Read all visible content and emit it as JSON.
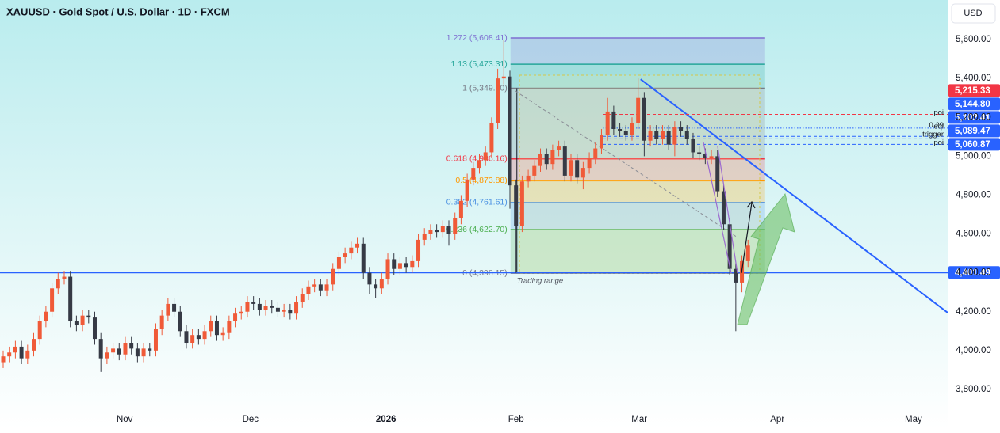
{
  "chart_data": {
    "type": "candlestick",
    "title": "XAUUSD · Gold Spot / U.S. Dollar · 1D · FXCM",
    "currency": "USD",
    "xlim": [
      -0.52,
      154.7
    ],
    "xticks": [
      {
        "value": 19.9,
        "label": "Nov"
      },
      {
        "value": 40.5,
        "label": "Dec"
      },
      {
        "value": 62.7,
        "label": "2026"
      },
      {
        "value": 84,
        "label": "Feb"
      },
      {
        "value": 104.2,
        "label": "Mar"
      },
      {
        "value": 126.8,
        "label": "Apr"
      },
      {
        "value": 149.1,
        "label": "May"
      }
    ],
    "ylim": [
      3706,
      5804
    ],
    "yticks": [
      {
        "value": 5600,
        "label": "5,600.00"
      },
      {
        "value": 5400,
        "label": "5,400.00"
      },
      {
        "value": 5200,
        "label": "5,200.00"
      },
      {
        "value": 5000,
        "label": "5,000.00"
      },
      {
        "value": 4800,
        "label": "4,800.00"
      },
      {
        "value": 4600,
        "label": "4,600.00"
      },
      {
        "value": 4400,
        "label": "4,400.00"
      },
      {
        "value": 4200,
        "label": "4,200.00"
      },
      {
        "value": 4000,
        "label": "4,000.00"
      },
      {
        "value": 3800,
        "label": "3,800.00"
      }
    ],
    "grid": false,
    "up_color": "#f05a38",
    "down_color": "#363a45",
    "open": [
      3940,
      3970,
      3990,
      4020,
      3960,
      4000,
      4060,
      4150,
      4200,
      4320,
      4370,
      4380,
      4150,
      4130,
      4180,
      4170,
      4060,
      3960,
      3990,
      4010,
      3980,
      4040,
      4010,
      3970,
      4010,
      4000,
      4110,
      4180,
      4240,
      4200,
      4100,
      4040,
      4080,
      4060,
      4100,
      4150,
      4080,
      4090,
      4150,
      4190,
      4200,
      4250,
      4240,
      4210,
      4230,
      4220,
      4200,
      4210,
      4190,
      4250,
      4290,
      4330,
      4340,
      4310,
      4340,
      4420,
      4480,
      4500,
      4530,
      4550,
      4400,
      4340,
      4320,
      4370,
      4470,
      4420,
      4450,
      4430,
      4460,
      4570,
      4600,
      4620,
      4610,
      4640,
      4600,
      4680,
      4770,
      4880,
      4940,
      4980,
      5020,
      5170,
      5400,
      5410,
      4850,
      4640,
      4870,
      4900,
      4950,
      5010,
      4960,
      5030,
      5050,
      4900,
      4980,
      4890,
      4940,
      4990,
      5040,
      5110,
      5230,
      5140,
      5130,
      5110,
      5170,
      5300,
      5080,
      5130,
      5090,
      5130,
      5060,
      5150,
      5130,
      5090,
      5020,
      5010,
      4990,
      5000,
      4820,
      4650,
      4420,
      4350,
      4460
    ],
    "high": [
      4000,
      4020,
      4050,
      4050,
      4030,
      4090,
      4180,
      4230,
      4350,
      4400,
      4410,
      4410,
      4180,
      4210,
      4210,
      4200,
      4090,
      4020,
      4040,
      4040,
      4070,
      4070,
      4040,
      4040,
      4040,
      4140,
      4210,
      4270,
      4270,
      4230,
      4130,
      4110,
      4110,
      4130,
      4180,
      4180,
      4120,
      4180,
      4220,
      4230,
      4280,
      4280,
      4270,
      4260,
      4260,
      4250,
      4240,
      4240,
      4280,
      4320,
      4360,
      4370,
      4370,
      4370,
      4450,
      4510,
      4530,
      4560,
      4580,
      4580,
      4430,
      4370,
      4400,
      4500,
      4500,
      4480,
      4480,
      4490,
      4600,
      4630,
      4650,
      4650,
      4670,
      4670,
      4710,
      4800,
      4910,
      4970,
      5010,
      5050,
      5200,
      5450,
      5600,
      5440,
      4880,
      4900,
      4930,
      4980,
      5040,
      5040,
      5060,
      5080,
      5080,
      5010,
      5010,
      4970,
      5020,
      5070,
      5140,
      5300,
      5260,
      5170,
      5160,
      5200,
      5400,
      5330,
      5160,
      5160,
      5160,
      5160,
      5180,
      5180,
      5160,
      5120,
      5050,
      5040,
      5030,
      5030,
      4850,
      4680,
      4450,
      4490,
      4570
    ],
    "low": [
      3910,
      3940,
      3960,
      3930,
      3930,
      3970,
      4030,
      4120,
      4170,
      4290,
      4340,
      4120,
      4100,
      4100,
      4140,
      4030,
      3890,
      3930,
      3960,
      3950,
      3950,
      3980,
      3940,
      3940,
      3970,
      3970,
      4080,
      4150,
      4170,
      4070,
      4010,
      4010,
      4030,
      4030,
      4070,
      4050,
      4050,
      4060,
      4120,
      4160,
      4170,
      4210,
      4180,
      4180,
      4190,
      4170,
      4170,
      4160,
      4160,
      4220,
      4260,
      4300,
      4280,
      4280,
      4310,
      4390,
      4450,
      4470,
      4500,
      4370,
      4290,
      4270,
      4290,
      4340,
      4390,
      4390,
      4400,
      4400,
      4430,
      4540,
      4570,
      4580,
      4580,
      4540,
      4570,
      4650,
      4740,
      4850,
      4910,
      4950,
      4990,
      5140,
      5370,
      4730,
      4400,
      4610,
      4840,
      4870,
      4920,
      4930,
      4930,
      5000,
      4870,
      4870,
      4860,
      4830,
      4910,
      4960,
      5010,
      5080,
      5110,
      5100,
      5080,
      5080,
      5140,
      5000,
      5050,
      5060,
      5060,
      5030,
      5000,
      5100,
      5060,
      4990,
      4980,
      4960,
      4960,
      4790,
      4620,
      4390,
      4100,
      4300,
      4430
    ],
    "close": [
      3970,
      3990,
      4020,
      3960,
      4000,
      4060,
      4150,
      4200,
      4320,
      4370,
      4380,
      4150,
      4130,
      4180,
      4170,
      4060,
      3960,
      3990,
      4010,
      3980,
      4040,
      4010,
      3970,
      4010,
      4000,
      4110,
      4180,
      4240,
      4200,
      4100,
      4040,
      4080,
      4060,
      4100,
      4150,
      4080,
      4090,
      4150,
      4190,
      4200,
      4250,
      4240,
      4210,
      4230,
      4220,
      4200,
      4210,
      4190,
      4250,
      4290,
      4330,
      4340,
      4310,
      4340,
      4420,
      4480,
      4500,
      4530,
      4550,
      4400,
      4340,
      4320,
      4370,
      4470,
      4420,
      4450,
      4430,
      4460,
      4570,
      4600,
      4620,
      4610,
      4640,
      4600,
      4680,
      4770,
      4880,
      4940,
      4980,
      5020,
      5170,
      5400,
      5410,
      4850,
      4640,
      4870,
      4900,
      4950,
      5010,
      4960,
      5030,
      5050,
      4900,
      4980,
      4890,
      4940,
      4990,
      5040,
      5110,
      5230,
      5140,
      5130,
      5110,
      5170,
      5300,
      5080,
      5130,
      5090,
      5130,
      5060,
      5150,
      5130,
      5090,
      5020,
      5010,
      4990,
      5000,
      4820,
      4650,
      4420,
      4350,
      4460,
      4540
    ],
    "fib": {
      "x": [
        83.1,
        124.8
      ],
      "levels": [
        {
          "label": "1.272 (5,608.41)",
          "value": 5608.41,
          "color": "#7e6fd1"
        },
        {
          "label": "1.13 (5,473.31)",
          "value": 5473.31,
          "color": "#26a69a"
        },
        {
          "label": "1 (5,349.60)",
          "value": 5349.6,
          "color": "#787b86"
        },
        {
          "label": "0.618 (4,986.16)",
          "value": 4986.16,
          "color": "#f23645"
        },
        {
          "label": "0.5 (4,873.88)",
          "value": 4873.88,
          "color": "#ff9800"
        },
        {
          "label": "0.382 (4,761.61)",
          "value": 4761.61,
          "color": "#4a90e2"
        },
        {
          "label": "0.236 (4,622.70)",
          "value": 4622.7,
          "color": "#4caf50"
        },
        {
          "label": "0 (4,398.15)",
          "value": 4398.15,
          "color": "#787b86"
        }
      ]
    },
    "range_note": "Trading range",
    "levels": [
      {
        "label": "poi",
        "value": 5215.33,
        "value_label": "5,215.33",
        "color": "#f23645",
        "style": "dashed"
      },
      {
        "label": "0.29",
        "value": 5150,
        "color": "#787b86",
        "style": "dotted"
      },
      {
        "label": "eql",
        "value": 5144.8,
        "value_label": "5,144.80",
        "color": "#2962ff",
        "style": "dotted"
      },
      {
        "label": "trigger",
        "value": 5102.41,
        "value_label": "5,102.41",
        "color": "#2962ff",
        "style": "dashed"
      },
      {
        "value": 5089.47,
        "value_label": "5,089.47",
        "color": "#2962ff",
        "style": "dashed"
      },
      {
        "label": "poi",
        "value": 5060.87,
        "value_label": "5,060.87",
        "color": "#2962ff",
        "style": "dashed"
      }
    ],
    "support": {
      "value": 4401.49,
      "value_label": "4,401.49",
      "color": "#2962ff"
    },
    "trendline": {
      "x": [
        104.4,
        154.7
      ],
      "y": [
        5396,
        4195
      ],
      "color": "#2962ff"
    }
  }
}
